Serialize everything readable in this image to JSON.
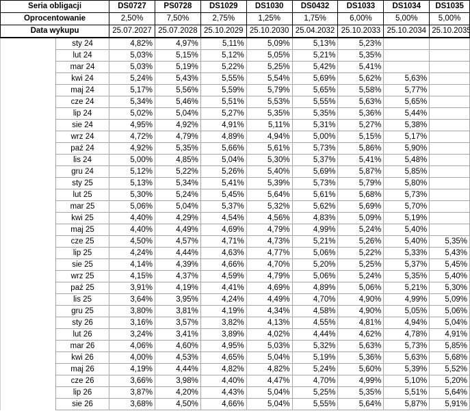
{
  "header": {
    "label": "Seria obligacji",
    "series": [
      "DS0727",
      "PS0728",
      "DS1029",
      "DS1030",
      "DS0432",
      "DS1033",
      "DS1034",
      "DS1035"
    ]
  },
  "coupon": {
    "label": "Oprocentowanie",
    "values": [
      "2,50%",
      "7,50%",
      "2,75%",
      "1,25%",
      "1,75%",
      "6,00%",
      "5,00%",
      "5,00%"
    ]
  },
  "maturity": {
    "label": "Data wykupu",
    "values": [
      "25.07.2027",
      "25.07.2028",
      "25.10.2029",
      "25.10.2030",
      "25.04.2032",
      "25.10.2033",
      "25.10.2034",
      "25.10.2035"
    ]
  },
  "rows": [
    {
      "month": "sty 24",
      "values": [
        "4,82%",
        "4,97%",
        "5,11%",
        "5,09%",
        "5,13%",
        "5,23%",
        null,
        null
      ]
    },
    {
      "month": "lut 24",
      "values": [
        "5,03%",
        "5,15%",
        "5,12%",
        "5,05%",
        "5,21%",
        "5,35%",
        null,
        null
      ]
    },
    {
      "month": "mar 24",
      "values": [
        "5,03%",
        "5,19%",
        "5,22%",
        "5,25%",
        "5,42%",
        "5,41%",
        null,
        null
      ]
    },
    {
      "month": "kwi 24",
      "values": [
        "5,24%",
        "5,43%",
        "5,55%",
        "5,54%",
        "5,69%",
        "5,62%",
        "5,63%",
        null
      ]
    },
    {
      "month": "maj 24",
      "values": [
        "5,17%",
        "5,56%",
        "5,59%",
        "5,79%",
        "5,65%",
        "5,58%",
        "5,77%",
        null
      ]
    },
    {
      "month": "cze 24",
      "values": [
        "5,34%",
        "5,46%",
        "5,51%",
        "5,53%",
        "5,55%",
        "5,63%",
        "5,65%",
        null
      ]
    },
    {
      "month": "lip 24",
      "values": [
        "5,02%",
        "5,04%",
        "5,27%",
        "5,35%",
        "5,35%",
        "5,36%",
        "5,44%",
        null
      ]
    },
    {
      "month": "sie 24",
      "values": [
        "4,95%",
        "4,92%",
        "4,91%",
        "5,11%",
        "5,31%",
        "5,27%",
        "5,38%",
        null
      ]
    },
    {
      "month": "wrz 24",
      "values": [
        "4,72%",
        "4,79%",
        "4,89%",
        "4,94%",
        "5,00%",
        "5,15%",
        "5,17%",
        null
      ]
    },
    {
      "month": "paź 24",
      "values": [
        "4,92%",
        "5,35%",
        "5,66%",
        "5,61%",
        "5,73%",
        "5,86%",
        "5,90%",
        null
      ]
    },
    {
      "month": "lis 24",
      "values": [
        "5,00%",
        "4,85%",
        "5,04%",
        "5,30%",
        "5,37%",
        "5,41%",
        "5,48%",
        null
      ]
    },
    {
      "month": "gru 24",
      "values": [
        "5,12%",
        "5,22%",
        "5,26%",
        "5,40%",
        "5,69%",
        "5,87%",
        "5,85%",
        null
      ]
    },
    {
      "month": "sty 25",
      "values": [
        "5,13%",
        "5,34%",
        "5,41%",
        "5,39%",
        "5,73%",
        "5,79%",
        "5,80%",
        null
      ]
    },
    {
      "month": "lut 25",
      "values": [
        "5,30%",
        "5,24%",
        "5,45%",
        "5,64%",
        "5,61%",
        "5,68%",
        "5,73%",
        null
      ]
    },
    {
      "month": "mar 25",
      "values": [
        "5,06%",
        "5,04%",
        "5,37%",
        "5,32%",
        "5,62%",
        "5,69%",
        "5,70%",
        null
      ]
    },
    {
      "month": "kwi 25",
      "values": [
        "4,40%",
        "4,29%",
        "4,54%",
        "4,56%",
        "4,83%",
        "5,09%",
        "5,19%",
        null
      ]
    },
    {
      "month": "maj 25",
      "values": [
        "4,40%",
        "4,49%",
        "4,69%",
        "4,79%",
        "4,99%",
        "5,24%",
        "5,40%",
        null
      ]
    },
    {
      "month": "cze 25",
      "values": [
        "4,50%",
        "4,57%",
        "4,71%",
        "4,73%",
        "5,21%",
        "5,26%",
        "5,40%",
        "5,35%"
      ]
    },
    {
      "month": "lip 25",
      "values": [
        "4,24%",
        "4,44%",
        "4,63%",
        "4,77%",
        "5,06%",
        "5,22%",
        "5,33%",
        "5,43%"
      ]
    },
    {
      "month": "sie 25",
      "values": [
        "4,14%",
        "4,39%",
        "4,66%",
        "4,70%",
        "5,20%",
        "5,25%",
        "5,37%",
        "5,45%"
      ]
    },
    {
      "month": "wrz 25",
      "values": [
        "4,15%",
        "4,37%",
        "4,59%",
        "4,79%",
        "5,06%",
        "5,24%",
        "5,35%",
        "5,40%"
      ]
    },
    {
      "month": "paź 25",
      "values": [
        "3,91%",
        "4,19%",
        "4,41%",
        "4,69%",
        "4,89%",
        "5,06%",
        "5,21%",
        "5,30%"
      ]
    },
    {
      "month": "lis 25",
      "values": [
        "3,64%",
        "3,95%",
        "4,24%",
        "4,49%",
        "4,70%",
        "4,90%",
        "4,99%",
        "5,09%"
      ]
    },
    {
      "month": "gru 25",
      "values": [
        "3,80%",
        "3,81%",
        "4,19%",
        "4,34%",
        "4,58%",
        "4,90%",
        "5,05%",
        "5,06%"
      ]
    },
    {
      "month": "sty 26",
      "values": [
        "3,16%",
        "3,57%",
        "3,82%",
        "4,13%",
        "4,55%",
        "4,81%",
        "4,94%",
        "5,04%"
      ]
    },
    {
      "month": "lut 26",
      "values": [
        "3,24%",
        "3,41%",
        "3,89%",
        "4,02%",
        "4,44%",
        "4,62%",
        "4,78%",
        "4,91%"
      ]
    },
    {
      "month": "mar 26",
      "values": [
        "4,06%",
        "4,60%",
        "4,95%",
        "5,03%",
        "5,32%",
        "5,63%",
        "5,73%",
        "5,85%"
      ]
    },
    {
      "month": "kwi 26",
      "values": [
        "4,00%",
        "4,53%",
        "4,65%",
        "5,04%",
        "5,19%",
        "5,36%",
        "5,63%",
        "5,68%"
      ]
    },
    {
      "month": "maj 26",
      "values": [
        "4,19%",
        "4,44%",
        "4,82%",
        "4,82%",
        "5,24%",
        "5,60%",
        "5,39%",
        "5,52%"
      ]
    },
    {
      "month": "cze 26",
      "values": [
        "3,66%",
        "3,98%",
        "4,40%",
        "4,47%",
        "4,70%",
        "4,99%",
        "5,10%",
        "5,20%"
      ]
    },
    {
      "month": "lip 26",
      "values": [
        "3,87%",
        "4,20%",
        "4,43%",
        "5,04%",
        "5,25%",
        "5,35%",
        "5,51%",
        "5,64%"
      ]
    },
    {
      "month": "sie 26",
      "values": [
        "3,68%",
        "4,50%",
        "4,66%",
        "5,04%",
        "5,55%",
        "5,64%",
        "5,87%",
        "5,91%"
      ]
    }
  ]
}
